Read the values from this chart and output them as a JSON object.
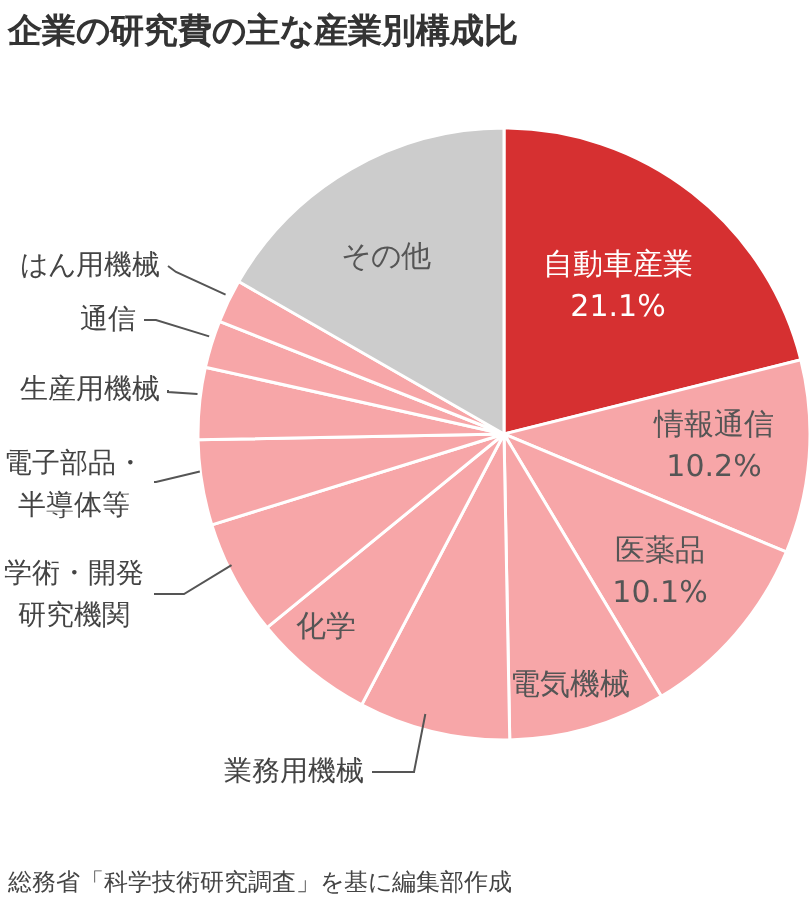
{
  "chart_data": {
    "type": "pie",
    "title": "企業の研究費の主な産業別構成比",
    "categories": [
      "自動車産業",
      "情報通信",
      "医薬品",
      "電気機械",
      "業務用機械",
      "化学",
      "学術・開発研究機関",
      "電子部品・半導体等",
      "生産用機械",
      "通信",
      "はん用機械",
      "その他"
    ],
    "values": [
      21.1,
      10.2,
      10.1,
      8.3,
      8.0,
      6.4,
      6.1,
      4.5,
      3.8,
      2.5,
      2.3,
      16.7
    ],
    "value_labels": [
      "21.1%",
      "10.2%",
      "10.1%",
      null,
      null,
      null,
      null,
      null,
      null,
      null,
      null,
      null
    ],
    "colors": [
      "#d63031",
      "#f7a6a8",
      "#f7a6a8",
      "#f7a6a8",
      "#f7a6a8",
      "#f7a6a8",
      "#f7a6a8",
      "#f7a6a8",
      "#f7a6a8",
      "#f7a6a8",
      "#f7a6a8",
      "#cccccc"
    ],
    "annotations": [
      "総務省「科学技術研究調査」を基に編集部作成"
    ]
  }
}
